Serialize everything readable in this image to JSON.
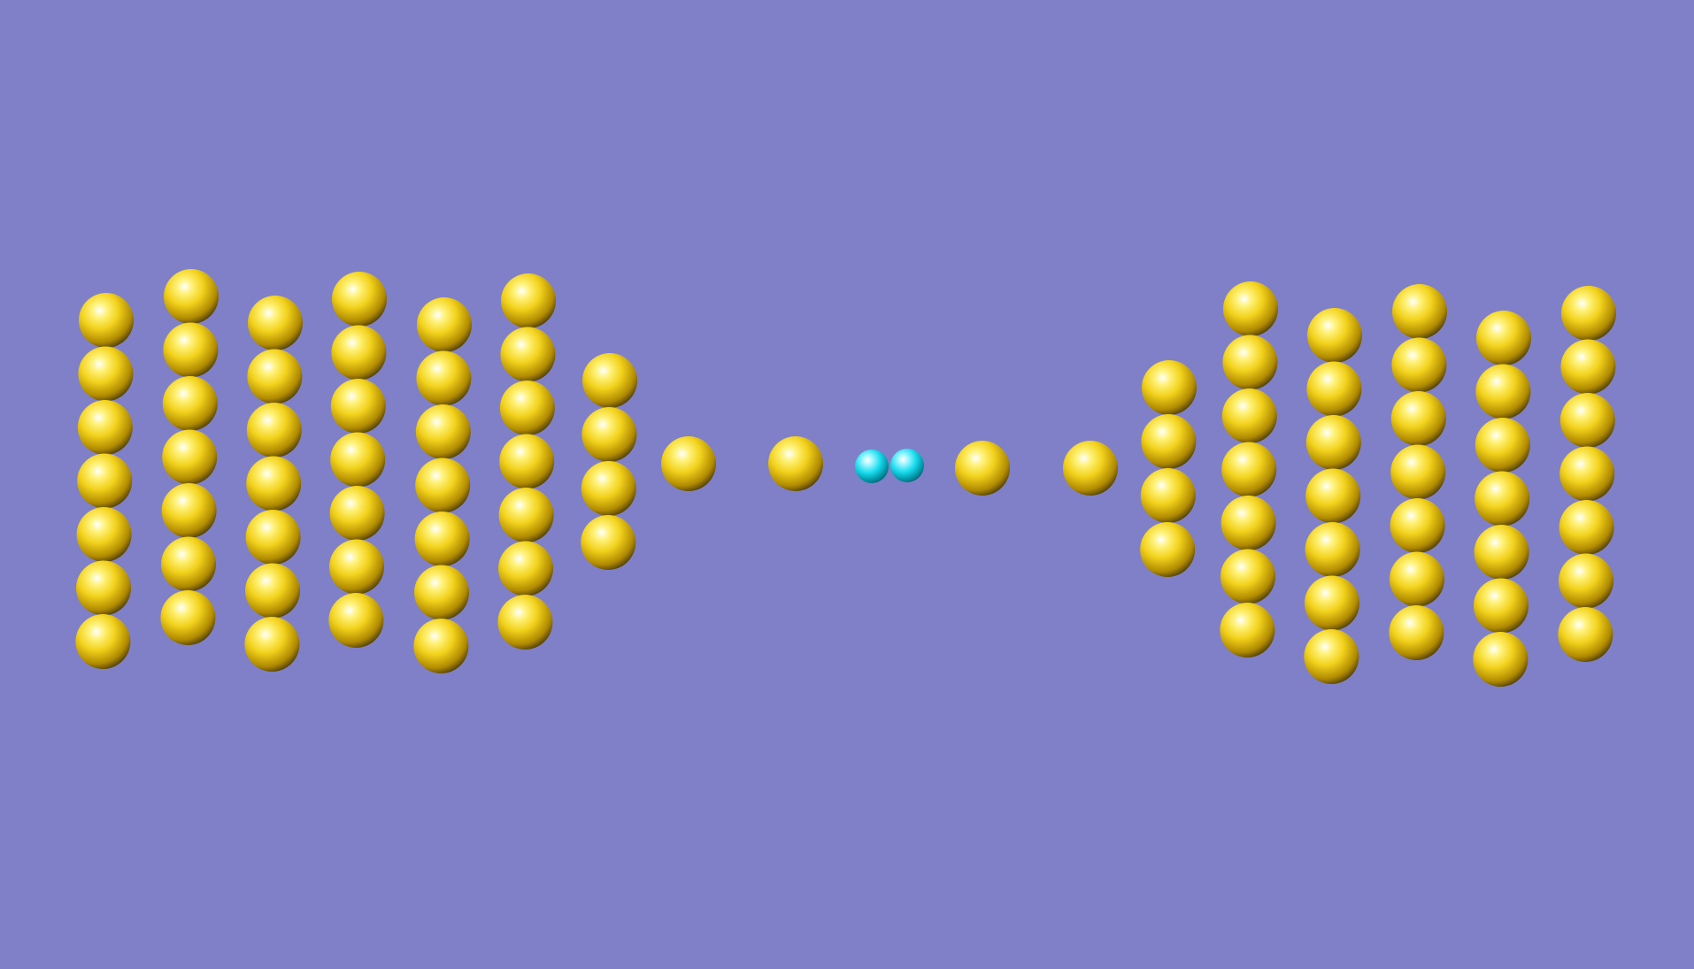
{
  "scene": {
    "background_color": "#8080c8",
    "gold_color": "#f2d21c",
    "highlight_color": "#ffffff",
    "shadow_color": "#3a2e00",
    "cyan_color": "#19dcee",
    "cyan_shadow": "#005a66",
    "atom_types": {
      "gold": "gold-atom",
      "cyan": "hydrogen-atom"
    }
  }
}
